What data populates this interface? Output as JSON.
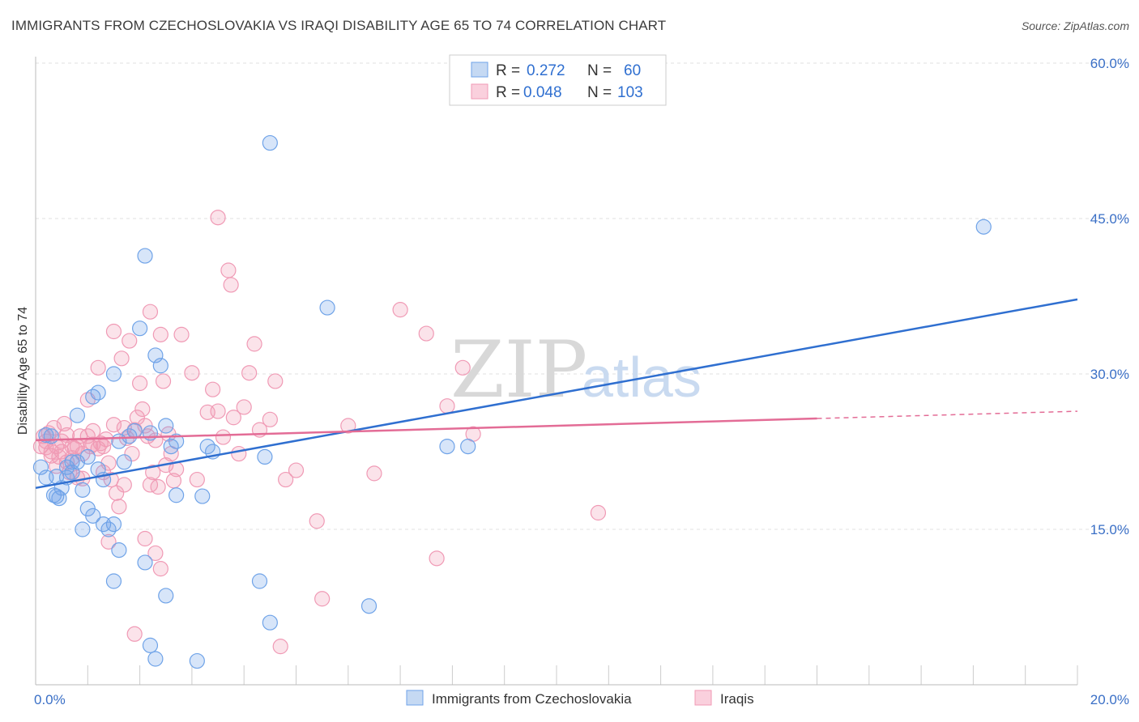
{
  "title": "IMMIGRANTS FROM CZECHOSLOVAKIA VS IRAQI DISABILITY AGE 65 TO 74 CORRELATION CHART",
  "source": "Source: ZipAtlas.com",
  "watermark": {
    "zip": "ZIP",
    "atlas": "atlas"
  },
  "colors": {
    "blue": "#6fa3e8",
    "blue_line": "#2f6fd0",
    "pink": "#f09ab5",
    "pink_line": "#e36c96"
  },
  "legend": {
    "r_label": "R =",
    "n_label": "N =",
    "rows": [
      {
        "r": "0.272",
        "n": "60"
      },
      {
        "r": "0.048",
        "n": "103"
      }
    ]
  },
  "chart_data": {
    "type": "scatter",
    "ylabel": "Disability Age 65 to 74",
    "xlim": [
      0,
      20
    ],
    "ylim": [
      0,
      60
    ],
    "x_tick_labels": [
      "0.0%",
      "20.0%"
    ],
    "y_ticks": [
      15,
      30,
      45,
      60
    ],
    "y_tick_labels": [
      "15.0%",
      "30.0%",
      "45.0%",
      "60.0%"
    ],
    "grid": true,
    "series": [
      {
        "name": "Immigrants from Czechoslovakia",
        "color": "#6fa3e8",
        "trend": {
          "x0": 0,
          "y0": 19,
          "x1": 20,
          "y1": 37.2
        },
        "points": [
          [
            0.1,
            21
          ],
          [
            0.2,
            20
          ],
          [
            0.3,
            24
          ],
          [
            0.35,
            18.3
          ],
          [
            0.4,
            20.1
          ],
          [
            0.45,
            18
          ],
          [
            0.5,
            19
          ],
          [
            0.6,
            21
          ],
          [
            0.6,
            20
          ],
          [
            0.7,
            20.5
          ],
          [
            0.8,
            21.5
          ],
          [
            0.8,
            26
          ],
          [
            0.9,
            15
          ],
          [
            1,
            17
          ],
          [
            1.1,
            16.3
          ],
          [
            1.2,
            20.8
          ],
          [
            1.3,
            19.8
          ],
          [
            1.4,
            15
          ],
          [
            1.5,
            15.5
          ],
          [
            1.6,
            13
          ],
          [
            1.6,
            23.5
          ],
          [
            1.8,
            24
          ],
          [
            1.9,
            24.5
          ],
          [
            2.1,
            11.8
          ],
          [
            2.1,
            41.4
          ],
          [
            2.3,
            31.8
          ],
          [
            2.4,
            30.8
          ],
          [
            2.5,
            25
          ],
          [
            2.6,
            23
          ],
          [
            2.7,
            23.5
          ],
          [
            2.7,
            18.3
          ],
          [
            3.2,
            18.2
          ],
          [
            3.4,
            22.5
          ],
          [
            4.4,
            22
          ],
          [
            4.5,
            52.3
          ],
          [
            5.6,
            36.4
          ],
          [
            7.9,
            23
          ],
          [
            8.3,
            23
          ],
          [
            18.2,
            44.2
          ],
          [
            0.2,
            24.1
          ],
          [
            0.4,
            18.2
          ],
          [
            0.7,
            21.5
          ],
          [
            1,
            22
          ],
          [
            1.2,
            28.2
          ],
          [
            1.5,
            30
          ],
          [
            1.5,
            10
          ],
          [
            2,
            34.4
          ],
          [
            2.2,
            24.3
          ],
          [
            2.5,
            8.6
          ],
          [
            2.2,
            3.8
          ],
          [
            3.1,
            2.3
          ],
          [
            4.5,
            6
          ],
          [
            6.4,
            7.6
          ],
          [
            4.3,
            10
          ],
          [
            2.3,
            2.5
          ],
          [
            3.3,
            23
          ],
          [
            1.3,
            15.5
          ],
          [
            0.9,
            18.8
          ],
          [
            1.1,
            27.8
          ],
          [
            1.7,
            21.5
          ]
        ]
      },
      {
        "name": "Iraqis",
        "color": "#f09ab5",
        "trend": {
          "x0": 0,
          "y0": 23.6,
          "x1": 15,
          "y1": 25.7
        },
        "trend_dashed": {
          "x0": 15,
          "y0": 25.7,
          "x1": 20,
          "y1": 26.4
        },
        "points": [
          [
            0.1,
            23
          ],
          [
            0.15,
            24
          ],
          [
            0.2,
            23.5
          ],
          [
            0.25,
            24.3
          ],
          [
            0.3,
            22.5
          ],
          [
            0.35,
            24.8
          ],
          [
            0.4,
            23
          ],
          [
            0.45,
            22
          ],
          [
            0.5,
            23.5
          ],
          [
            0.55,
            25.2
          ],
          [
            0.6,
            21.5
          ],
          [
            0.65,
            20.5
          ],
          [
            0.7,
            23
          ],
          [
            0.75,
            22.8
          ],
          [
            0.8,
            20
          ],
          [
            0.85,
            24
          ],
          [
            0.9,
            22.3
          ],
          [
            1,
            24
          ],
          [
            1.05,
            23
          ],
          [
            1.1,
            24.5
          ],
          [
            1.2,
            22.8
          ],
          [
            1.25,
            23.3
          ],
          [
            1.3,
            20.5
          ],
          [
            1.35,
            23.7
          ],
          [
            1.4,
            21.4
          ],
          [
            1.45,
            19.8
          ],
          [
            1.5,
            25.1
          ],
          [
            1.55,
            18.5
          ],
          [
            1.6,
            17.2
          ],
          [
            1.65,
            31.5
          ],
          [
            1.7,
            19.3
          ],
          [
            1.75,
            23.8
          ],
          [
            1.8,
            33.2
          ],
          [
            1.85,
            22.3
          ],
          [
            1.9,
            24.6
          ],
          [
            1.95,
            25.8
          ],
          [
            2,
            29.1
          ],
          [
            2.05,
            26.6
          ],
          [
            2.1,
            25
          ],
          [
            2.15,
            24
          ],
          [
            2.2,
            19.3
          ],
          [
            2.25,
            20.5
          ],
          [
            2.3,
            23.6
          ],
          [
            2.35,
            19.1
          ],
          [
            2.4,
            33.8
          ],
          [
            2.45,
            29.3
          ],
          [
            2.5,
            21.2
          ],
          [
            2.55,
            24.2
          ],
          [
            2.6,
            22.3
          ],
          [
            2.65,
            19.7
          ],
          [
            2.8,
            33.8
          ],
          [
            3.0,
            30.1
          ],
          [
            3.1,
            19.8
          ],
          [
            3.3,
            26.3
          ],
          [
            3.4,
            28.5
          ],
          [
            3.5,
            26.4
          ],
          [
            3.5,
            45.1
          ],
          [
            3.6,
            23.9
          ],
          [
            3.7,
            40
          ],
          [
            3.75,
            38.6
          ],
          [
            3.8,
            25.8
          ],
          [
            4.0,
            26.8
          ],
          [
            4.1,
            30.1
          ],
          [
            4.2,
            32.9
          ],
          [
            4.3,
            24.6
          ],
          [
            4.5,
            25.6
          ],
          [
            4.6,
            29.3
          ],
          [
            4.8,
            19.8
          ],
          [
            5.0,
            20.7
          ],
          [
            5.4,
            15.8
          ],
          [
            5.5,
            8.3
          ],
          [
            6.0,
            25
          ],
          [
            6.5,
            20.4
          ],
          [
            7.0,
            36.2
          ],
          [
            7.5,
            33.9
          ],
          [
            7.7,
            12.2
          ],
          [
            7.9,
            26.9
          ],
          [
            8.2,
            30.6
          ],
          [
            8.4,
            24.2
          ],
          [
            10.8,
            16.6
          ],
          [
            1.0,
            27.5
          ],
          [
            1.2,
            30.6
          ],
          [
            1.5,
            34.1
          ],
          [
            1.9,
            4.9
          ],
          [
            2.2,
            36
          ],
          [
            2.1,
            14.1
          ],
          [
            2.4,
            11.2
          ],
          [
            2.3,
            12.7
          ],
          [
            0.3,
            22.1
          ],
          [
            0.5,
            22.5
          ],
          [
            1.4,
            13.8
          ],
          [
            1.7,
            24.8
          ],
          [
            0.9,
            19.9
          ],
          [
            0.7,
            21.9
          ],
          [
            1.1,
            23.2
          ],
          [
            4.7,
            3.7
          ],
          [
            2.7,
            20.8
          ],
          [
            0.2,
            22.9
          ],
          [
            0.4,
            21.1
          ],
          [
            0.6,
            24.1
          ],
          [
            1.3,
            23
          ],
          [
            0.8,
            23
          ],
          [
            3.9,
            22.3
          ]
        ]
      }
    ]
  }
}
